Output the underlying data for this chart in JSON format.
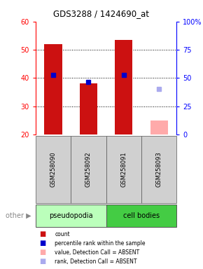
{
  "title": "GDS3288 / 1424690_at",
  "samples": [
    "GSM258090",
    "GSM258092",
    "GSM258091",
    "GSM258093"
  ],
  "groups": [
    "pseudopodia",
    "pseudopodia",
    "cell bodies",
    "cell bodies"
  ],
  "ylim_left": [
    20,
    60
  ],
  "ylim_right": [
    0,
    100
  ],
  "yticks_left": [
    20,
    30,
    40,
    50,
    60
  ],
  "yticks_right": [
    0,
    25,
    50,
    75,
    100
  ],
  "bar_values": [
    52,
    38,
    53.5,
    null
  ],
  "bar_colors": [
    "#cc1111",
    "#cc1111",
    "#cc1111",
    null
  ],
  "absent_bar_values": [
    null,
    null,
    null,
    25
  ],
  "absent_bar_color": "#ffaaaa",
  "rank_squares": [
    41,
    38.5,
    41,
    null
  ],
  "rank_square_color": "#0000cc",
  "absent_rank_squares": [
    null,
    null,
    null,
    36
  ],
  "absent_rank_color": "#aaaaee",
  "group_colors": {
    "pseudopodia": "#bbffbb",
    "cell bodies": "#44cc44"
  },
  "bar_width": 0.5,
  "legend_items": [
    {
      "label": "count",
      "color": "#cc1111"
    },
    {
      "label": "percentile rank within the sample",
      "color": "#0000cc"
    },
    {
      "label": "value, Detection Call = ABSENT",
      "color": "#ffaaaa"
    },
    {
      "label": "rank, Detection Call = ABSENT",
      "color": "#aaaaee"
    }
  ]
}
